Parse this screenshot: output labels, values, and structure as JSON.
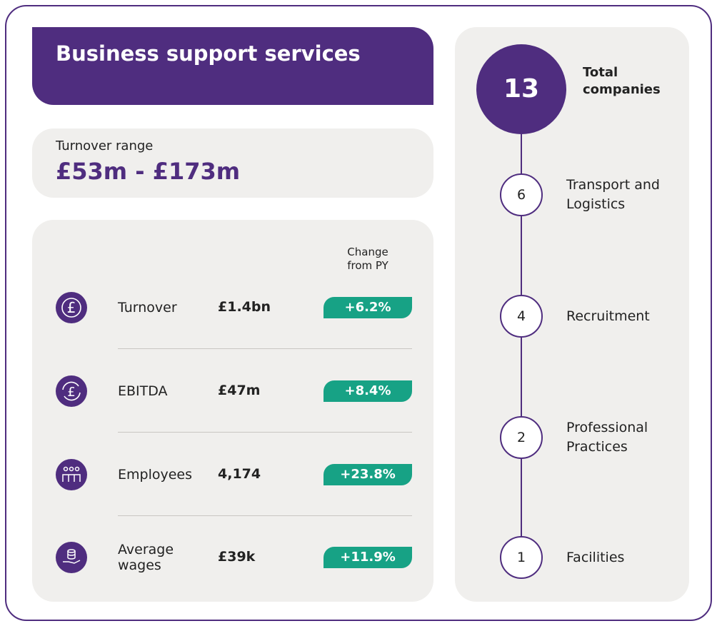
{
  "header": {
    "title": "Business support services"
  },
  "turnover_range": {
    "label": "Turnover range",
    "value": "£53m - £173m"
  },
  "stats": {
    "column_header": "Change from PY",
    "rows": [
      {
        "label": "Turnover",
        "value": "£1.4bn",
        "change": "+6.2%"
      },
      {
        "label": "EBITDA",
        "value": "£47m",
        "change": "+8.4%"
      },
      {
        "label": "Employees",
        "value": "4,174",
        "change": "+23.8%"
      },
      {
        "label": "Average wages",
        "value": "£39k",
        "change": "+11.9%"
      }
    ]
  },
  "companies": {
    "total": 13,
    "total_label": "Total companies",
    "breakdown": [
      {
        "count": 6,
        "label": "Transport and Logistics"
      },
      {
        "count": 4,
        "label": "Recruitment"
      },
      {
        "count": 2,
        "label": "Professional Practices"
      },
      {
        "count": 1,
        "label": "Facilities"
      }
    ]
  }
}
